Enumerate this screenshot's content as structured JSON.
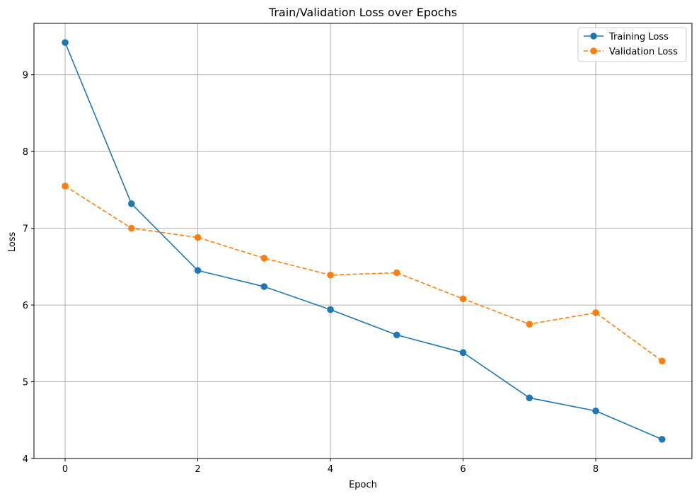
{
  "chart_data": {
    "type": "line",
    "title": "Train/Validation Loss over Epochs",
    "xlabel": "Epoch",
    "ylabel": "Loss",
    "x": [
      0,
      1,
      2,
      3,
      4,
      5,
      6,
      7,
      8,
      9
    ],
    "xlim": [
      -0.47,
      9.45
    ],
    "ylim": [
      4.0,
      9.67
    ],
    "xticks": [
      0,
      2,
      4,
      6,
      8
    ],
    "yticks": [
      4,
      5,
      6,
      7,
      8,
      9
    ],
    "grid": true,
    "legend_position": "top-right",
    "series": [
      {
        "name": "Training Loss",
        "color": "#1f77b4",
        "line_style": "solid",
        "marker": "circle",
        "values": [
          9.42,
          7.32,
          6.45,
          6.24,
          5.94,
          5.61,
          5.38,
          4.79,
          4.62,
          4.25
        ]
      },
      {
        "name": "Validation Loss",
        "color": "#ff7f0e",
        "line_style": "dashed",
        "marker": "circle",
        "values": [
          7.55,
          7.0,
          6.88,
          6.61,
          6.39,
          6.42,
          6.08,
          5.75,
          5.9,
          5.27
        ]
      }
    ]
  }
}
